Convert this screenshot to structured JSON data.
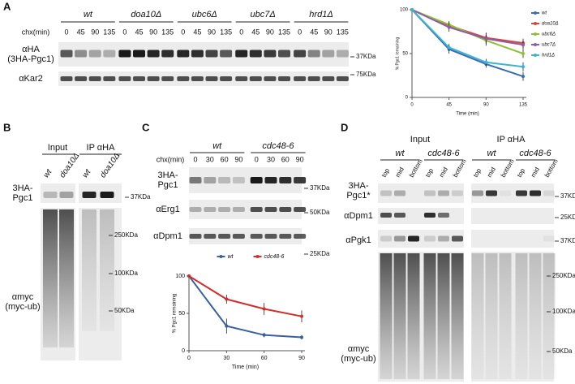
{
  "panel_a": {
    "letter": "A",
    "chx_label": "chx(min)",
    "strains": [
      "wt",
      "doa10Δ",
      "ubc6Δ",
      "ubc7Δ",
      "hrd1Δ"
    ],
    "times": [
      "0",
      "45",
      "90",
      "135"
    ],
    "rows": [
      [
        "αHA",
        "(3HA-Pgc1)"
      ],
      [
        "αKar2"
      ]
    ],
    "markers": [
      "37KDa",
      "75KDa"
    ]
  },
  "panel_b": {
    "letter": "B",
    "groups": [
      "Input",
      "IP αHA"
    ],
    "lanes": [
      "wt",
      "doa10Δ"
    ],
    "rows": [
      [
        "3HA-",
        "Pgc1"
      ],
      [
        "αmyc",
        "(myc-ub)"
      ]
    ],
    "markers": [
      "37KDa",
      "250KDa",
      "100KDa",
      "50KDa"
    ]
  },
  "panel_c": {
    "letter": "C",
    "chx_label": "chx(min)",
    "strains": [
      "wt",
      "cdc48-6"
    ],
    "times": [
      "0",
      "30",
      "60",
      "90"
    ],
    "rows": [
      [
        "3HA-",
        "Pgc1"
      ],
      [
        "αErg1"
      ],
      [
        "αDpm1"
      ]
    ],
    "markers": [
      "37KDa",
      "50KDa",
      "25KDa"
    ]
  },
  "panel_d": {
    "letter": "D",
    "groups": [
      "Input",
      "IP αHA"
    ],
    "strains": [
      "wt",
      "cdc48-6"
    ],
    "fractions": [
      "top",
      "mid",
      "bottom"
    ],
    "rows": [
      [
        "3HA-",
        "Pgc1*"
      ],
      [
        "αDpm1"
      ],
      [
        "αPgk1"
      ],
      [
        "αmyc",
        "(myc-ub)"
      ]
    ],
    "markers": [
      "37KDa",
      "25KDa",
      "37KDa",
      "250KDa",
      "100KDa",
      "50KDa"
    ]
  },
  "chart_data": [
    {
      "type": "line",
      "x_label": "Time (min)",
      "y_label": "% Pgc1 remaining",
      "x": [
        0,
        45,
        90,
        135
      ],
      "xlim": [
        0,
        135
      ],
      "xticks": [
        0,
        45,
        90,
        135
      ],
      "ylim": [
        0,
        100
      ],
      "yticks": [
        0,
        50,
        100
      ],
      "legend": "right",
      "series": [
        {
          "name": "wt",
          "color": "#3b6db3",
          "values": [
            100,
            55,
            38,
            24
          ],
          "errors": [
            0,
            5,
            4,
            5
          ]
        },
        {
          "name": "doa10Δ",
          "color": "#d9453b",
          "values": [
            100,
            82,
            68,
            62
          ],
          "errors": [
            0,
            4,
            6,
            5
          ]
        },
        {
          "name": "ubc6Δ",
          "color": "#8fbf3a",
          "values": [
            100,
            83,
            65,
            50
          ],
          "errors": [
            0,
            4,
            6,
            5
          ]
        },
        {
          "name": "ubc7Δ",
          "color": "#8e5ba8",
          "values": [
            100,
            80,
            67,
            60
          ],
          "errors": [
            0,
            5,
            6,
            5
          ]
        },
        {
          "name": "hrd1Δ",
          "color": "#3bb4cc",
          "values": [
            100,
            57,
            40,
            35
          ],
          "errors": [
            0,
            4,
            4,
            5
          ]
        }
      ]
    },
    {
      "type": "line",
      "x_label": "Time (min)",
      "y_label": "% Pgc1 remaining",
      "x": [
        0,
        30,
        60,
        90
      ],
      "xlim": [
        0,
        90
      ],
      "xticks": [
        0,
        30,
        60,
        90
      ],
      "ylim": [
        0,
        100
      ],
      "yticks": [
        0,
        50,
        100
      ],
      "legend": "top",
      "series": [
        {
          "name": "wt",
          "color": "#3b5fa0",
          "values": [
            100,
            33,
            21,
            18
          ],
          "errors": [
            0,
            10,
            3,
            3
          ]
        },
        {
          "name": "cdc48-6",
          "color": "#d42d2d",
          "values": [
            100,
            69,
            56,
            46
          ],
          "errors": [
            0,
            6,
            8,
            8
          ]
        }
      ]
    }
  ]
}
